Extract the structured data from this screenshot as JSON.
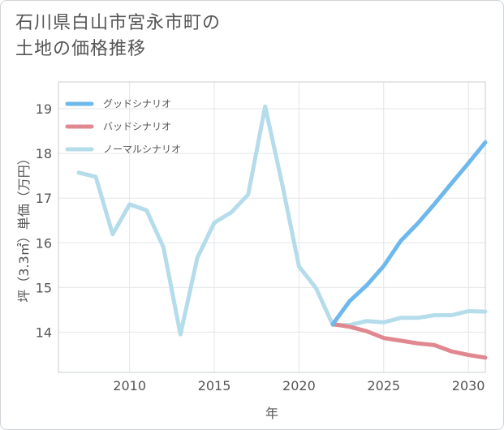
{
  "title": {
    "line1": "石川県白山市宮永市町の",
    "line2": "土地の価格推移"
  },
  "chart_data": {
    "type": "line",
    "xlabel": "年",
    "ylabel": "坪（3.3㎡）単価（万円）",
    "xlim": [
      2005.8,
      2031
    ],
    "ylim": [
      13.1,
      19.6
    ],
    "xticks": [
      2010,
      2015,
      2020,
      2025,
      2030
    ],
    "yticks": [
      14,
      15,
      16,
      17,
      18,
      19
    ],
    "legend_position": "top-left",
    "series": [
      {
        "name": "グッドシナリオ",
        "color": "#6db8ec",
        "x": [
          2022,
          2023,
          2024,
          2025,
          2026,
          2027,
          2028,
          2029,
          2030,
          2031
        ],
        "values": [
          14.18,
          14.7,
          15.05,
          15.48,
          16.04,
          16.43,
          16.87,
          17.33,
          17.78,
          18.25
        ]
      },
      {
        "name": "バッドシナリオ",
        "color": "#e0878f",
        "x": [
          2022,
          2023,
          2024,
          2025,
          2026,
          2027,
          2028,
          2029,
          2030,
          2031
        ],
        "values": [
          14.18,
          14.12,
          14.02,
          13.87,
          13.81,
          13.75,
          13.71,
          13.57,
          13.49,
          13.43
        ]
      },
      {
        "name": "ノーマルシナリオ",
        "color": "#b4dcea",
        "x": [
          2007,
          2008,
          2009,
          2010,
          2011,
          2012,
          2013,
          2014,
          2015,
          2016,
          2017,
          2018,
          2019,
          2020,
          2021,
          2022,
          2023,
          2024,
          2025,
          2026,
          2027,
          2028,
          2029,
          2030,
          2031
        ],
        "values": [
          17.57,
          17.48,
          16.19,
          16.86,
          16.73,
          15.9,
          13.95,
          15.67,
          16.45,
          16.68,
          17.08,
          19.05,
          17.33,
          15.47,
          14.99,
          14.16,
          14.16,
          14.25,
          14.22,
          14.32,
          14.32,
          14.38,
          14.38,
          14.47,
          14.46
        ]
      }
    ]
  }
}
